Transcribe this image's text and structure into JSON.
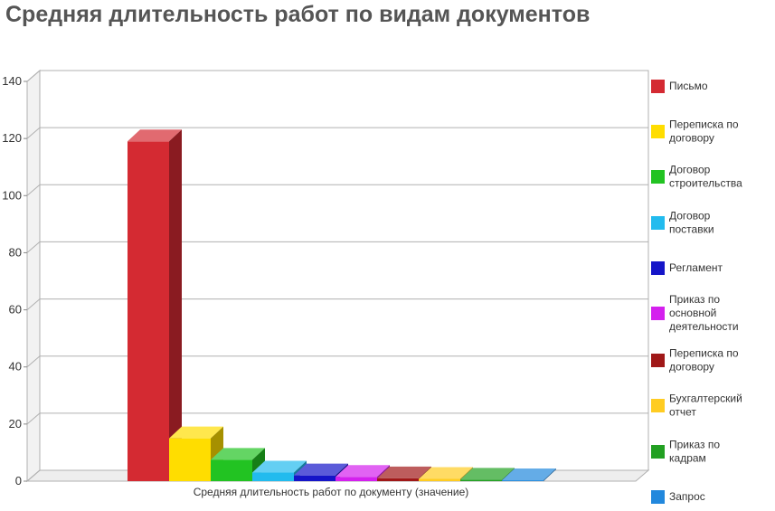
{
  "chart_data": {
    "type": "bar",
    "title": "Средняя длительность работ по видам документов",
    "category_label": "Средняя длительность работ по документу  (значение)",
    "ylim": [
      0,
      140
    ],
    "yticks": [
      0,
      20,
      40,
      60,
      80,
      100,
      120,
      140
    ],
    "grid": true,
    "legend_position": "right",
    "series": [
      {
        "name": "Письмо",
        "value": 119,
        "color": "#d42a32"
      },
      {
        "name": "Переписка по договору",
        "value": 15,
        "color": "#ffdd00"
      },
      {
        "name": "Договор строительства",
        "value": 7.5,
        "color": "#22c322"
      },
      {
        "name": "Договор поставки",
        "value": 3,
        "color": "#22bbee"
      },
      {
        "name": "Регламент",
        "value": 2,
        "color": "#1515c8"
      },
      {
        "name": "Приказ по основной деятельности",
        "value": 1.5,
        "color": "#d420ee"
      },
      {
        "name": "Переписка по договору",
        "value": 1,
        "color": "#a01818"
      },
      {
        "name": "Бухгалтерский отчет",
        "value": 0.8,
        "color": "#ffcc22"
      },
      {
        "name": "Приказ по кадрам",
        "value": 0.5,
        "color": "#22a022"
      },
      {
        "name": "Запрос",
        "value": 0.3,
        "color": "#2288dd"
      }
    ]
  }
}
